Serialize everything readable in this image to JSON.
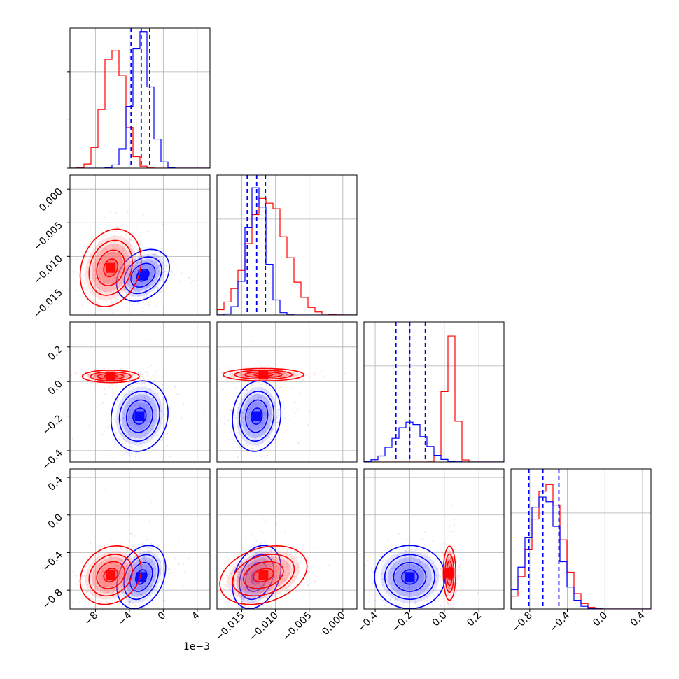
{
  "chart_data": {
    "type": "corner",
    "grid": true,
    "colors": {
      "set_a": "#ff0000",
      "set_b": "#0000ff"
    },
    "parameters": [
      {
        "range": [
          -0.011,
          0.0055
        ],
        "ticks": [
          -0.008,
          -0.004,
          0.0,
          0.004
        ],
        "tick_labels": [
          "−8",
          "−4",
          "0",
          "4"
        ],
        "offset_label": "1e−3"
      },
      {
        "range": [
          -0.0187,
          0.0021
        ],
        "ticks": [
          -0.015,
          -0.01,
          -0.005,
          0.0
        ],
        "tick_labels": [
          "−0.015",
          "−0.010",
          "−0.005",
          "0.000"
        ]
      },
      {
        "range": [
          -0.465,
          0.345
        ],
        "ticks": [
          -0.4,
          -0.2,
          0.0,
          0.2
        ],
        "tick_labels": [
          "−0.4",
          "−0.2",
          "0.0",
          "0.2"
        ]
      },
      {
        "range": [
          -1.0,
          0.49
        ],
        "ticks": [
          -0.8,
          -0.4,
          0.0,
          0.4
        ],
        "tick_labels": [
          "−0.8",
          "−0.4",
          "0.0",
          "0.4"
        ]
      }
    ],
    "diag_hist": [
      {
        "red_mean": -0.0058,
        "red_sd": 0.0012,
        "blue_mean": -0.0026,
        "blue_sd": 0.0011,
        "ymax": 1.05,
        "quantiles_blue": [
          -0.0038,
          -0.0026,
          -0.0016
        ],
        "yticks": [
          0.0,
          0.36,
          0.72
        ]
      },
      {
        "red_mean": -0.0112,
        "red_sd": 0.0028,
        "blue_mean": -0.0128,
        "blue_sd": 0.0014,
        "ymax": 1.05,
        "quantiles_blue": [
          -0.0142,
          -0.0128,
          -0.0115
        ]
      },
      {
        "red_mean": 0.035,
        "red_sd": 0.03,
        "blue_mean": -0.2,
        "blue_sd": 0.085,
        "ymax": 1.05,
        "quantiles_blue": [
          -0.28,
          -0.2,
          -0.11
        ],
        "red_peak_rel": 1.0,
        "blue_peak_rel": 0.3
      },
      {
        "red_mean": -0.62,
        "red_sd": 0.16,
        "blue_mean": -0.66,
        "blue_sd": 0.16,
        "ymax": 1.05,
        "quantiles_blue": [
          -0.81,
          -0.66,
          -0.49
        ]
      }
    ],
    "pairs": {
      "1-0": {
        "red": {
          "cx": -0.0062,
          "cy": -0.0117,
          "sx": 0.0015,
          "sy": 0.0024,
          "rho": 0.2
        },
        "blue": {
          "cx": -0.0024,
          "cy": -0.0128,
          "sx": 0.0013,
          "sy": 0.0016,
          "rho": 0.3
        }
      },
      "2-0": {
        "red": {
          "cx": -0.0062,
          "cy": 0.03,
          "sx": 0.0014,
          "sy": 0.015,
          "rho": 0.0
        },
        "blue": {
          "cx": -0.0028,
          "cy": -0.2,
          "sx": 0.0014,
          "sy": 0.085,
          "rho": 0.1
        }
      },
      "2-1": {
        "red": {
          "cx": -0.0118,
          "cy": 0.04,
          "sx": 0.0025,
          "sy": 0.015,
          "rho": 0.0
        },
        "blue": {
          "cx": -0.0128,
          "cy": -0.2,
          "sx": 0.0015,
          "sy": 0.085,
          "rho": 0.1
        }
      },
      "3-0": {
        "red": {
          "cx": -0.0062,
          "cy": -0.64,
          "sx": 0.0015,
          "sy": 0.13,
          "rho": 0.2
        },
        "blue": {
          "cx": -0.0026,
          "cy": -0.66,
          "sx": 0.0012,
          "sy": 0.14,
          "rho": 0.3
        }
      },
      "3-1": {
        "red": {
          "cx": -0.0118,
          "cy": -0.64,
          "sx": 0.0027,
          "sy": 0.13,
          "rho": 0.3
        },
        "blue": {
          "cx": -0.0128,
          "cy": -0.66,
          "sx": 0.0015,
          "sy": 0.14,
          "rho": 0.3
        }
      },
      "3-2": {
        "red": {
          "cx": 0.03,
          "cy": -0.62,
          "sx": 0.015,
          "sy": 0.12,
          "rho": 0.0
        },
        "blue": {
          "cx": -0.2,
          "cy": -0.66,
          "sx": 0.085,
          "sy": 0.14,
          "rho": 0.0
        }
      }
    }
  }
}
